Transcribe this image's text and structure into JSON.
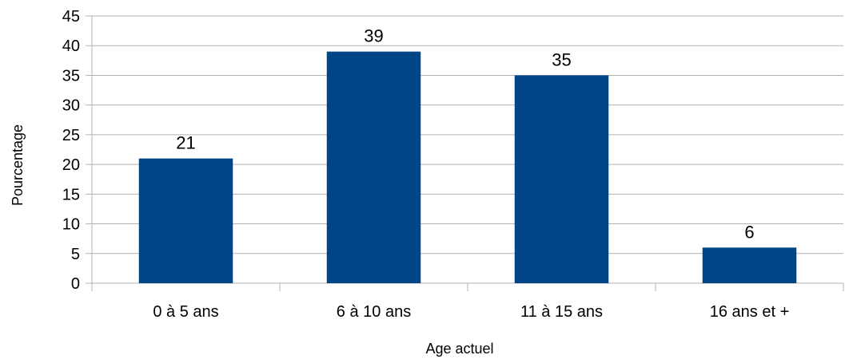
{
  "chart_data": {
    "type": "bar",
    "categories": [
      "0 à 5 ans",
      "6 à 10 ans",
      "11 à 15 ans",
      "16 ans et +"
    ],
    "values": [
      21,
      39,
      35,
      6
    ],
    "data_labels": [
      "21",
      "39",
      "35",
      "6"
    ],
    "xlabel": "Age actuel",
    "ylabel": "Pourcentage",
    "ylim": [
      0,
      45
    ],
    "yticks": [
      "0",
      "5",
      "10",
      "15",
      "20",
      "25",
      "30",
      "35",
      "40",
      "45"
    ],
    "grid": true,
    "bar_color": "#004586",
    "grid_color": "#b3b3b3"
  }
}
